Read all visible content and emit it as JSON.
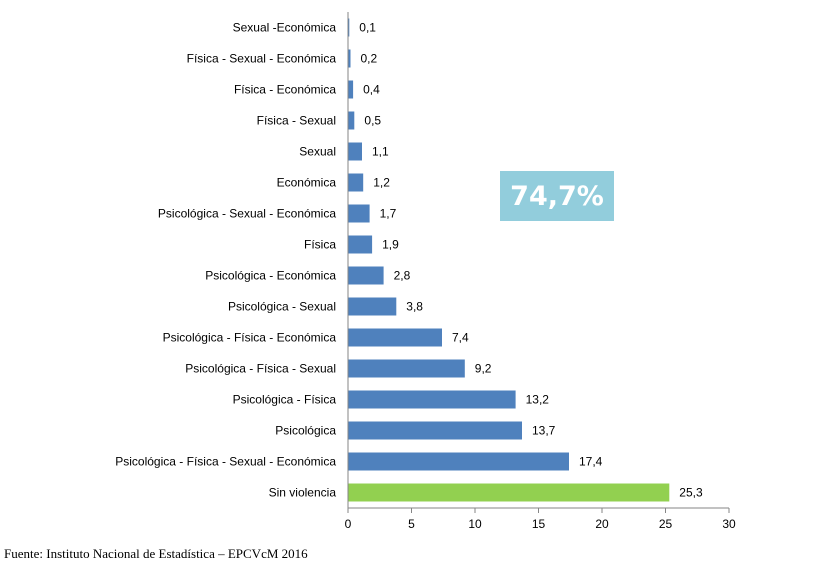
{
  "chart_data": {
    "type": "bar",
    "orientation": "horizontal",
    "categories": [
      "Sexual -Económica",
      "Física - Sexual - Económica",
      "Física - Económica",
      "Física - Sexual",
      "Sexual",
      "Económica",
      "Psicológica - Sexual - Económica",
      "Física",
      "Psicológica - Económica",
      "Psicológica - Sexual",
      "Psicológica - Física - Económica",
      "Psicológica - Física - Sexual",
      "Psicológica - Física",
      "Psicológica",
      "Psicológica - Física - Sexual - Económica",
      "Sin violencia"
    ],
    "values": [
      0.1,
      0.2,
      0.4,
      0.5,
      1.1,
      1.2,
      1.7,
      1.9,
      2.8,
      3.8,
      7.4,
      9.2,
      13.2,
      13.7,
      17.4,
      25.3
    ],
    "value_labels": [
      "0,1",
      "0,2",
      "0,4",
      "0,5",
      "1,1",
      "1,2",
      "1,7",
      "1,9",
      "2,8",
      "3,8",
      "7,4",
      "9,2",
      "13,2",
      "13,7",
      "17,4",
      "25,3"
    ],
    "xlim": [
      0,
      30
    ],
    "xticks": [
      0,
      5,
      10,
      15,
      20,
      25,
      30
    ],
    "grid": false,
    "colors": {
      "bar": "#4f81bd",
      "highlight": "#92d050",
      "highlight_category": "Sin violencia",
      "callout_bg": "#92cddc",
      "axis": "#868686"
    },
    "annotation": "74,7%"
  },
  "source": "Fuente: Instituto Nacional de Estadística – EPCVcM 2016"
}
